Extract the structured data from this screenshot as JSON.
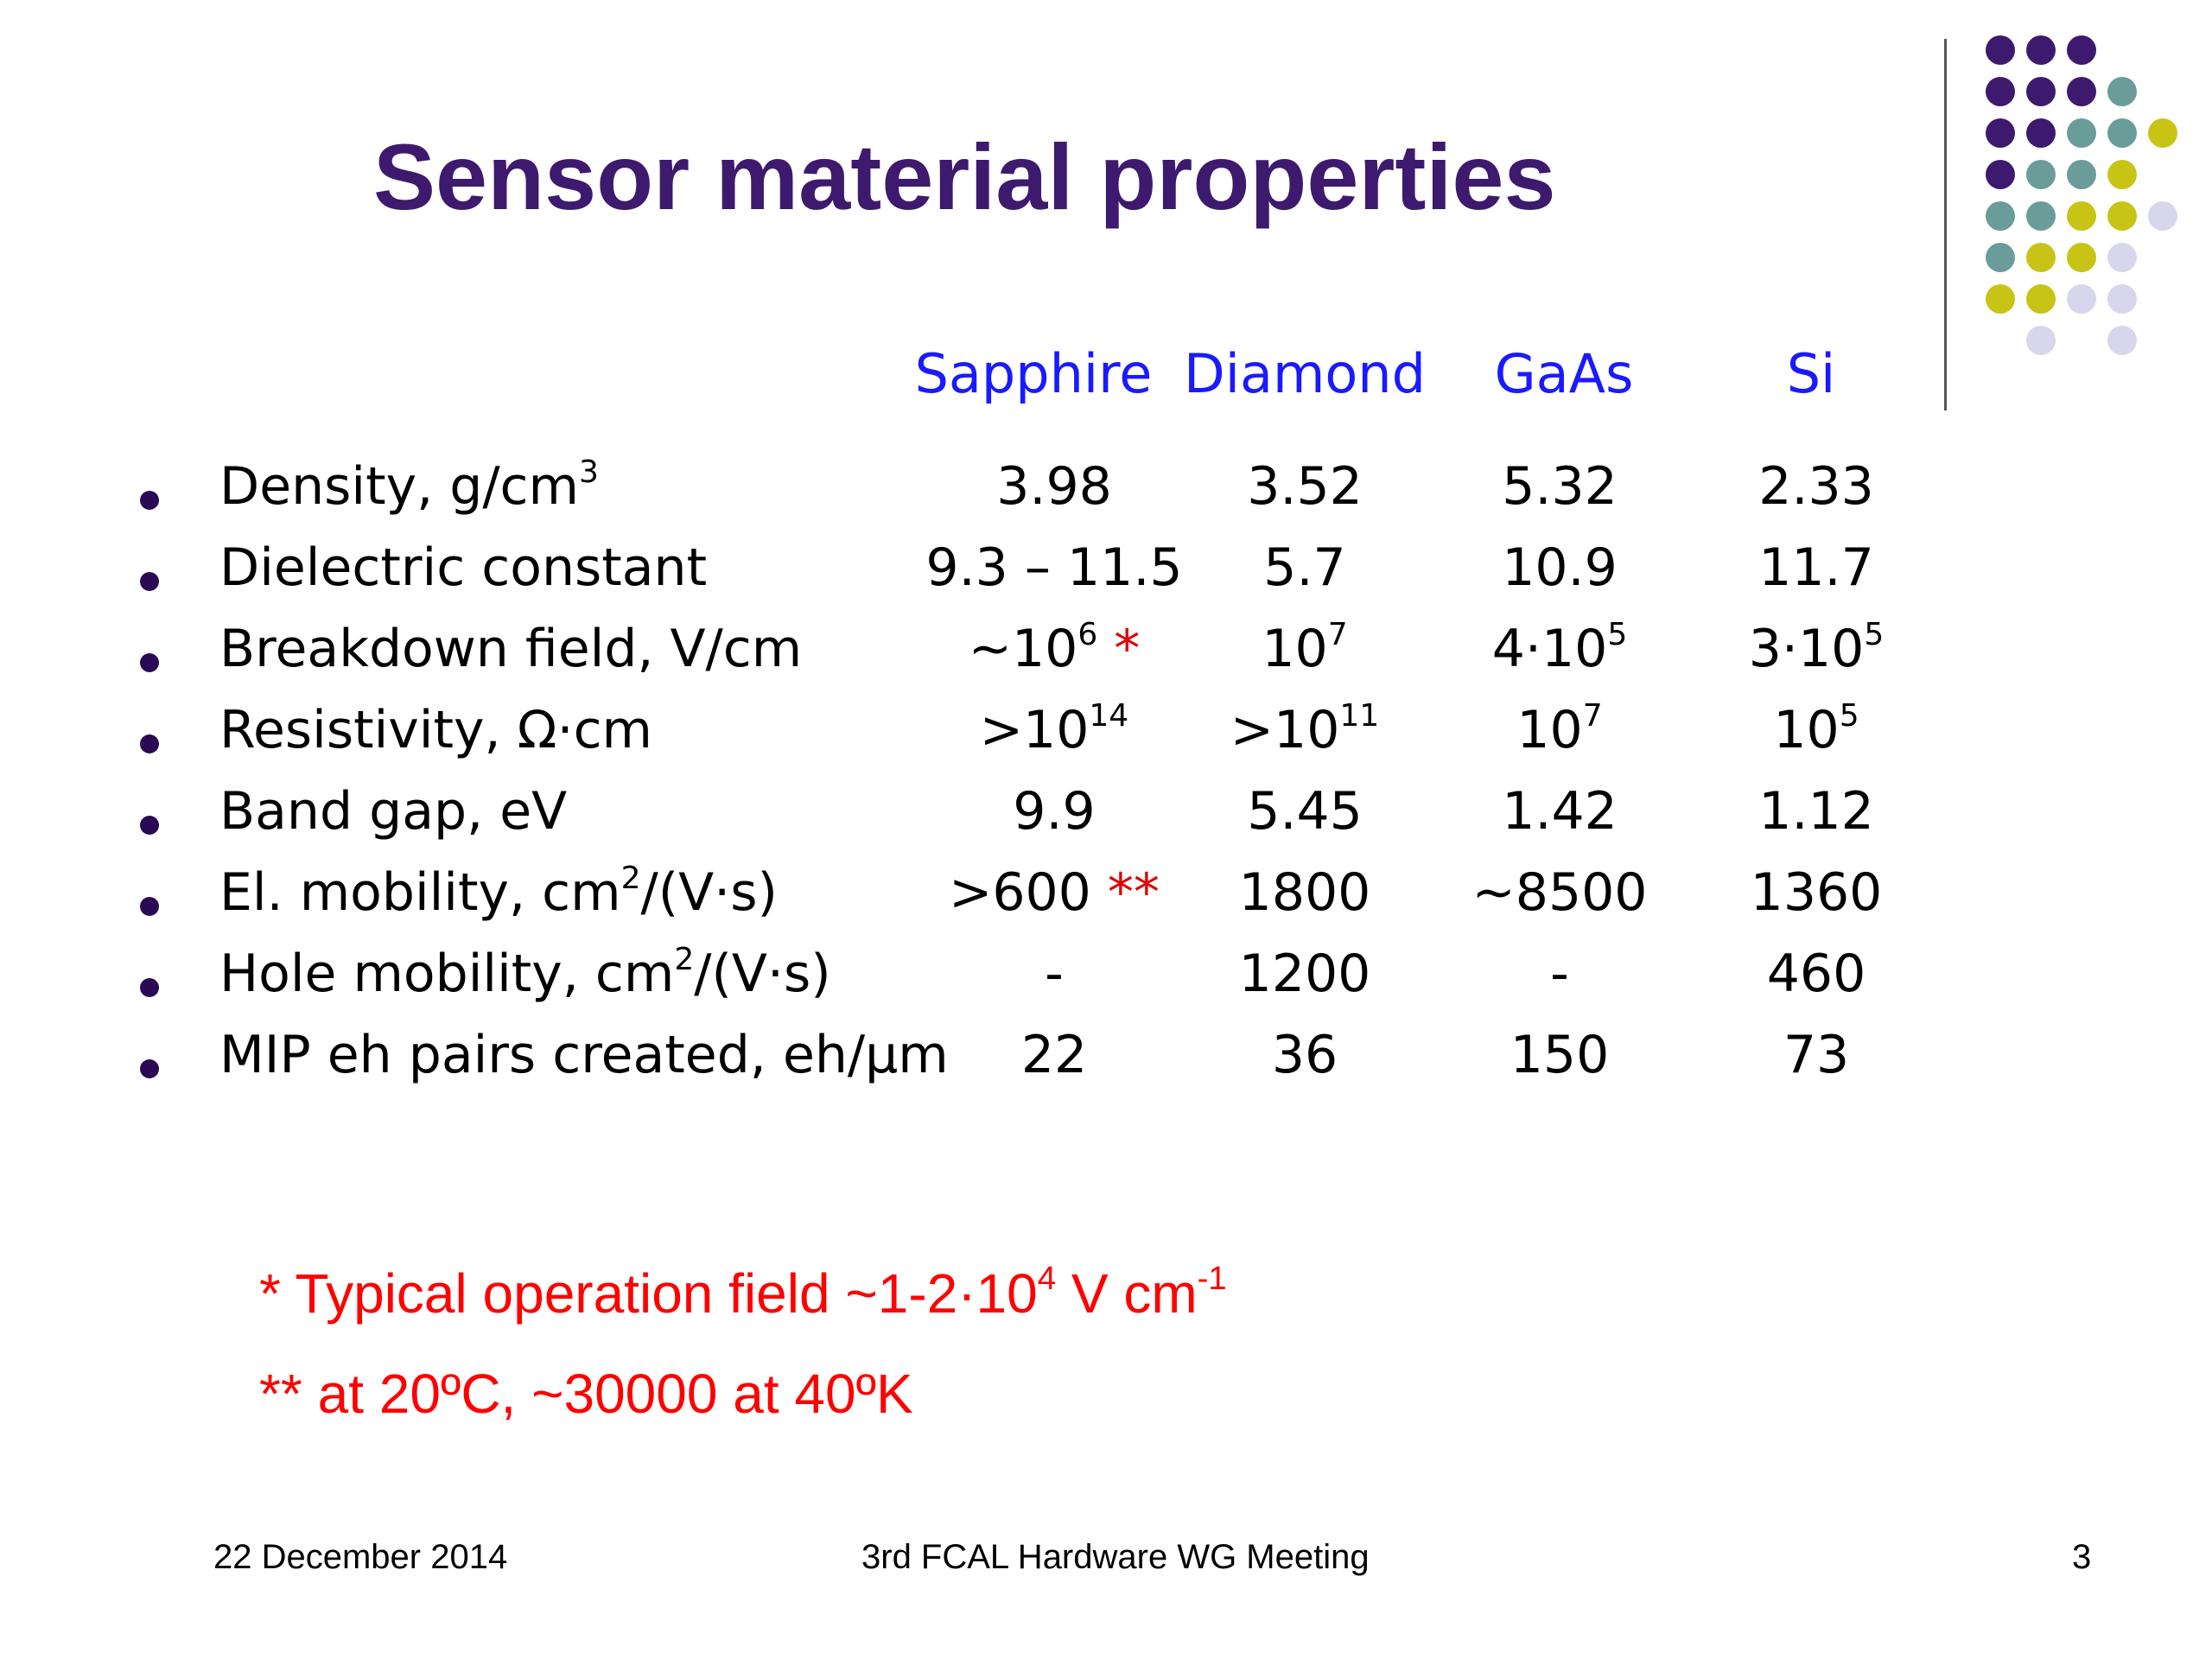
{
  "slide": {
    "title": "Sensor material properties"
  },
  "table": {
    "headers": [
      "Sapphire",
      "Diamond",
      "GaAs",
      "Si"
    ],
    "rows": [
      {
        "label": "Density, g/cm",
        "label_sup": "3",
        "cells": [
          {
            "base": "3.98"
          },
          {
            "base": "3.52"
          },
          {
            "base": "5.32"
          },
          {
            "base": "2.33"
          }
        ]
      },
      {
        "label": "Dielectric constant",
        "label_sup": "",
        "cells": [
          {
            "base": "9.3 – 11.5"
          },
          {
            "base": "5.7"
          },
          {
            "base": "10.9"
          },
          {
            "base": "11.7"
          }
        ]
      },
      {
        "label": "Breakdown field, V/cm",
        "label_sup": "",
        "cells": [
          {
            "base": "~10",
            "sup": "6",
            "mark": " *"
          },
          {
            "base": "10",
            "sup": "7"
          },
          {
            "base": "4·10",
            "sup": "5"
          },
          {
            "base": "3·10",
            "sup": "5"
          }
        ]
      },
      {
        "label": "Resistivity, Ω·cm",
        "label_sup": "",
        "cells": [
          {
            "base": ">10",
            "sup": "14"
          },
          {
            "base": ">10",
            "sup": "11"
          },
          {
            "base": "10",
            "sup": "7"
          },
          {
            "base": "10",
            "sup": "5"
          }
        ]
      },
      {
        "label": "Band gap, eV",
        "label_sup": "",
        "cells": [
          {
            "base": "9.9"
          },
          {
            "base": "5.45"
          },
          {
            "base": "1.42"
          },
          {
            "base": "1.12"
          }
        ]
      },
      {
        "label": "El. mobility, cm",
        "label_sup": "2",
        "label_tail": "/(V·s)",
        "cells": [
          {
            "base": ">600",
            "mark": " **"
          },
          {
            "base": "1800"
          },
          {
            "base": "~8500"
          },
          {
            "base": "1360"
          }
        ]
      },
      {
        "label": "Hole mobility, cm",
        "label_sup": "2",
        "label_tail": "/(V·s)",
        "cells": [
          {
            "base": "-"
          },
          {
            "base": "1200"
          },
          {
            "base": "-"
          },
          {
            "base": "460"
          }
        ]
      },
      {
        "label": "MIP eh pairs created, eh/μm",
        "label_sup": "",
        "cells": [
          {
            "base": "22"
          },
          {
            "base": "36"
          },
          {
            "base": "150"
          },
          {
            "base": "73"
          }
        ]
      }
    ]
  },
  "notes": {
    "note1_prefix": "* Typical operation field ~1-2·10",
    "note1_sup": "4",
    "note1_mid": " V cm",
    "note1_sup2": "-1",
    "note2": "** at 20ºC, ~30000 at 40ºK"
  },
  "footer": {
    "date": "22 December 2014",
    "event": "3rd FCAL Hardware WG Meeting",
    "page": "3"
  },
  "colors": {
    "title": "#3d1a6e",
    "header": "#1a1aff",
    "note": "#ff0000",
    "dot_purple": "#3d1a6e",
    "dot_teal": "#6a9c9a",
    "dot_olive": "#c8c416",
    "dot_lavender": "#d8d6ec"
  }
}
